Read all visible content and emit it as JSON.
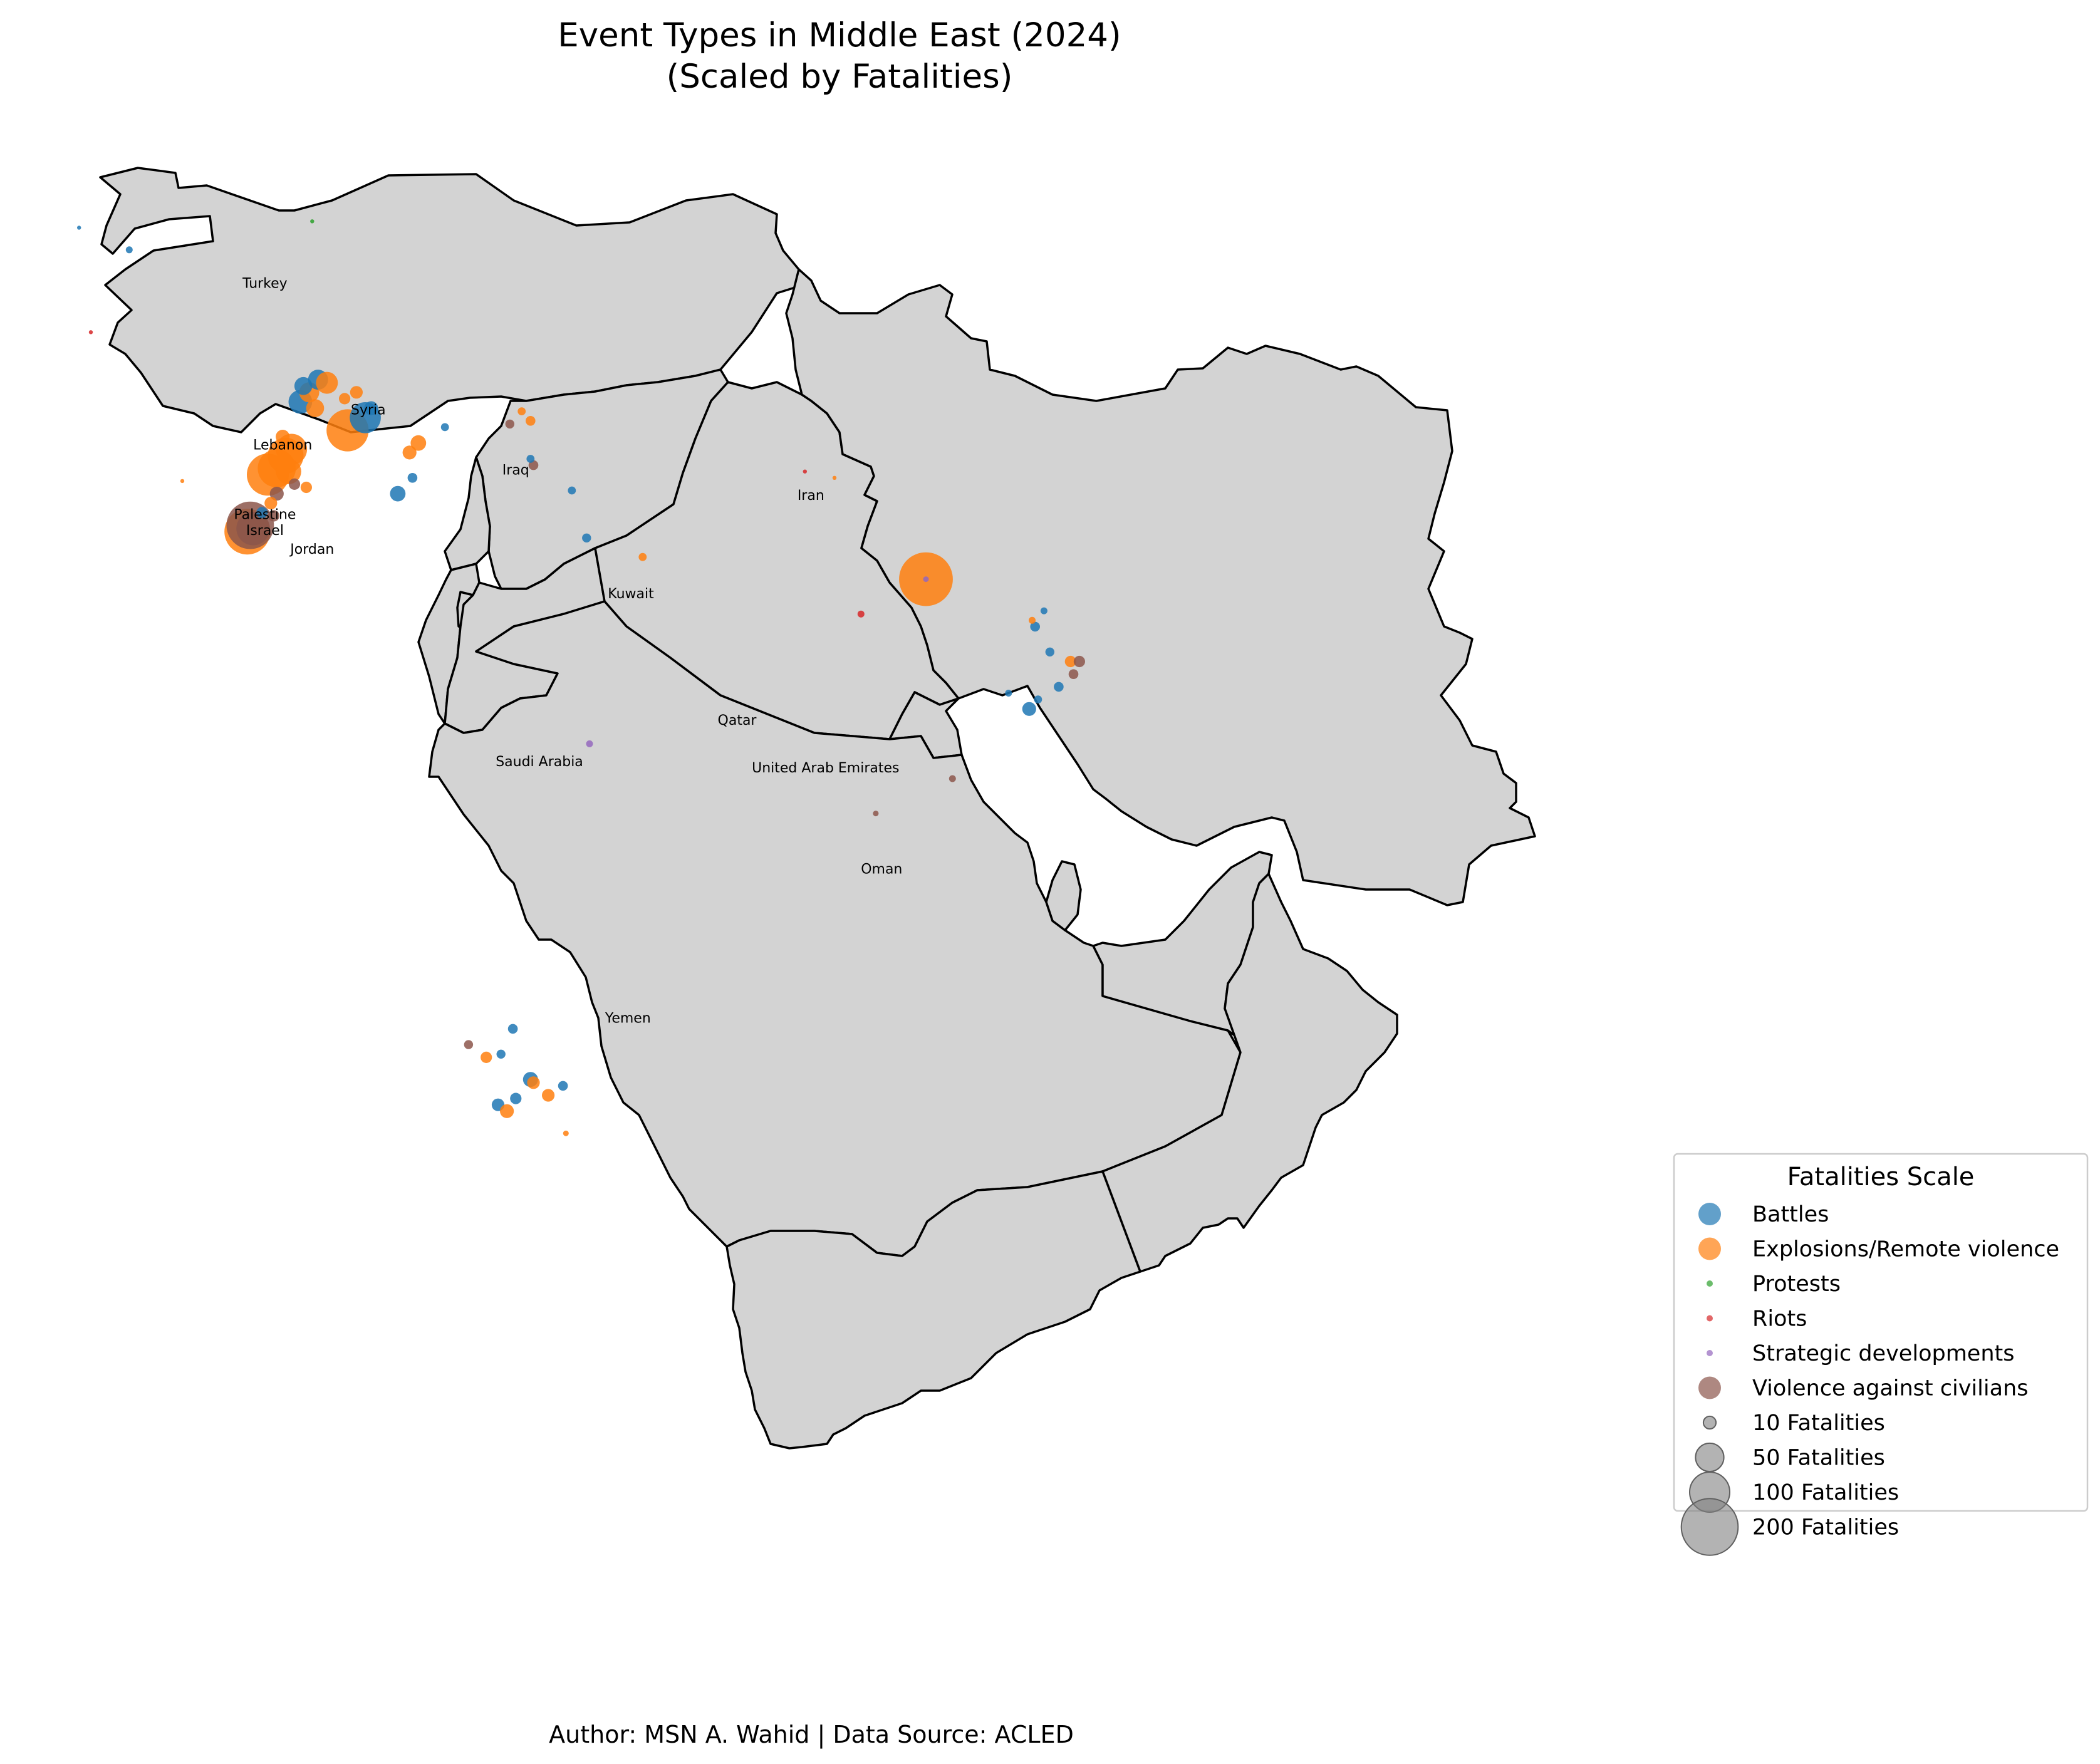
{
  "title": [
    "Event Types in Middle East (2024)",
    "(Scaled by Fatalities)"
  ],
  "footer": "Author: MSN A. Wahid | Data Source: ACLED",
  "countries": [
    {
      "name": "Turkey",
      "lon": 35.2,
      "lat": 39.1
    },
    {
      "name": "Syria",
      "lon": 38.7,
      "lat": 35.1
    },
    {
      "name": "Lebanon",
      "lon": 35.8,
      "lat": 34.0
    },
    {
      "name": "Palestine",
      "lon": 35.2,
      "lat": 31.8
    },
    {
      "name": "Israel",
      "lon": 35.2,
      "lat": 31.3
    },
    {
      "name": "Jordan",
      "lon": 36.8,
      "lat": 30.7
    },
    {
      "name": "Iraq",
      "lon": 43.7,
      "lat": 33.2
    },
    {
      "name": "Iran",
      "lon": 53.7,
      "lat": 32.4
    },
    {
      "name": "Kuwait",
      "lon": 47.6,
      "lat": 29.3
    },
    {
      "name": "Qatar",
      "lon": 51.2,
      "lat": 25.3
    },
    {
      "name": "Saudi Arabia",
      "lon": 44.5,
      "lat": 24.0
    },
    {
      "name": "United Arab Emirates",
      "lon": 54.2,
      "lat": 23.8
    },
    {
      "name": "Oman",
      "lon": 56.1,
      "lat": 20.6
    },
    {
      "name": "Yemen",
      "lon": 47.5,
      "lat": 15.9
    }
  ],
  "legend": {
    "title": "Fatalities Scale",
    "event_types": [
      {
        "name": "Battles",
        "color": "#1f77b4"
      },
      {
        "name": "Explosions/Remote violence",
        "color": "#ff7f0e"
      },
      {
        "name": "Protests",
        "color": "#2ca02c"
      },
      {
        "name": "Riots",
        "color": "#d62728"
      },
      {
        "name": "Strategic developments",
        "color": "#9467bd"
      },
      {
        "name": "Violence against civilians",
        "color": "#8c564b"
      }
    ],
    "sizes": [
      {
        "label": "10 Fatalities",
        "fatalities": 10
      },
      {
        "label": "50 Fatalities",
        "fatalities": 50
      },
      {
        "label": "100 Fatalities",
        "fatalities": 100
      },
      {
        "label": "200 Fatalities",
        "fatalities": 200
      }
    ]
  },
  "events": [
    {
      "type": "Explosions/Remote violence",
      "lon": 34.6,
      "lat": 31.4,
      "fatalities": 130
    },
    {
      "type": "Violence against civilians",
      "lon": 34.7,
      "lat": 31.6,
      "fatalities": 140
    },
    {
      "type": "Violence against civilians",
      "lon": 34.8,
      "lat": 31.5,
      "fatalities": 70
    },
    {
      "type": "Explosions/Remote violence",
      "lon": 35.3,
      "lat": 33.2,
      "fatalities": 110
    },
    {
      "type": "Explosions/Remote violence",
      "lon": 35.6,
      "lat": 33.4,
      "fatalities": 90
    },
    {
      "type": "Explosions/Remote violence",
      "lon": 35.9,
      "lat": 33.8,
      "fatalities": 80
    },
    {
      "type": "Explosions/Remote violence",
      "lon": 36.1,
      "lat": 34.0,
      "fatalities": 60
    },
    {
      "type": "Explosions/Remote violence",
      "lon": 36.0,
      "lat": 33.3,
      "fatalities": 40
    },
    {
      "type": "Explosions/Remote violence",
      "lon": 38.0,
      "lat": 34.6,
      "fatalities": 110
    },
    {
      "type": "Battles",
      "lon": 38.6,
      "lat": 35.0,
      "fatalities": 60
    },
    {
      "type": "Battles",
      "lon": 36.4,
      "lat": 35.5,
      "fatalities": 35
    },
    {
      "type": "Explosions/Remote violence",
      "lon": 36.7,
      "lat": 35.8,
      "fatalities": 25
    },
    {
      "type": "Battles",
      "lon": 37.0,
      "lat": 36.2,
      "fatalities": 25
    },
    {
      "type": "Explosions/Remote violence",
      "lon": 37.3,
      "lat": 36.1,
      "fatalities": 30
    },
    {
      "type": "Battles",
      "lon": 36.5,
      "lat": 36.0,
      "fatalities": 20
    },
    {
      "type": "Explosions/Remote violence",
      "lon": 36.9,
      "lat": 35.3,
      "fatalities": 20
    },
    {
      "type": "Explosions/Remote violence",
      "lon": 40.4,
      "lat": 34.2,
      "fatalities": 15
    },
    {
      "type": "Battles",
      "lon": 39.7,
      "lat": 32.6,
      "fatalities": 15
    },
    {
      "type": "Battles",
      "lon": 40.2,
      "lat": 33.1,
      "fatalities": 6
    },
    {
      "type": "Explosions/Remote violence",
      "lon": 40.1,
      "lat": 33.9,
      "fatalities": 12
    },
    {
      "type": "Explosions/Remote violence",
      "lon": 38.3,
      "lat": 35.8,
      "fatalities": 10
    },
    {
      "type": "Battles",
      "lon": 38.8,
      "lat": 35.3,
      "fatalities": 12
    },
    {
      "type": "Violence against civilians",
      "lon": 35.6,
      "lat": 32.6,
      "fatalities": 12
    },
    {
      "type": "Explosions/Remote violence",
      "lon": 35.4,
      "lat": 32.3,
      "fatalities": 10
    },
    {
      "type": "Battles",
      "lon": 35.1,
      "lat": 32.0,
      "fatalities": 8
    },
    {
      "type": "Violence against civilians",
      "lon": 35.5,
      "lat": 31.9,
      "fatalities": 8
    },
    {
      "type": "Violence against civilians",
      "lon": 36.2,
      "lat": 32.9,
      "fatalities": 8
    },
    {
      "type": "Explosions/Remote violence",
      "lon": 36.6,
      "lat": 32.8,
      "fatalities": 8
    },
    {
      "type": "Explosions/Remote violence",
      "lon": 35.8,
      "lat": 34.4,
      "fatalities": 12
    },
    {
      "type": "Explosions/Remote violence",
      "lon": 37.9,
      "lat": 35.6,
      "fatalities": 8
    },
    {
      "type": "Battles",
      "lon": 41.3,
      "lat": 34.7,
      "fatalities": 4
    },
    {
      "type": "Explosions/Remote violence",
      "lon": 44.2,
      "lat": 34.9,
      "fatalities": 6
    },
    {
      "type": "Violence against civilians",
      "lon": 44.3,
      "lat": 33.5,
      "fatalities": 6
    },
    {
      "type": "Battles",
      "lon": 44.2,
      "lat": 33.7,
      "fatalities": 4
    },
    {
      "type": "Violence against civilians",
      "lon": 43.5,
      "lat": 34.8,
      "fatalities": 5
    },
    {
      "type": "Explosions/Remote violence",
      "lon": 43.9,
      "lat": 35.2,
      "fatalities": 4
    },
    {
      "type": "Battles",
      "lon": 45.6,
      "lat": 32.7,
      "fatalities": 4
    },
    {
      "type": "Battles",
      "lon": 46.1,
      "lat": 31.2,
      "fatalities": 5
    },
    {
      "type": "Explosions/Remote violence",
      "lon": 48.0,
      "lat": 30.6,
      "fatalities": 4
    },
    {
      "type": "Explosions/Remote violence",
      "lon": 57.6,
      "lat": 29.9,
      "fatalities": 180
    },
    {
      "type": "Strategic developments",
      "lon": 57.6,
      "lat": 29.9,
      "fatalities": 2
    },
    {
      "type": "Riots",
      "lon": 55.4,
      "lat": 28.8,
      "fatalities": 3
    },
    {
      "type": "Battles",
      "lon": 61.3,
      "lat": 28.4,
      "fatalities": 6
    },
    {
      "type": "Battles",
      "lon": 61.8,
      "lat": 27.6,
      "fatalities": 5
    },
    {
      "type": "Explosions/Remote violence",
      "lon": 62.5,
      "lat": 27.3,
      "fatalities": 8
    },
    {
      "type": "Violence against civilians",
      "lon": 62.8,
      "lat": 27.3,
      "fatalities": 8
    },
    {
      "type": "Violence against civilians",
      "lon": 62.6,
      "lat": 26.9,
      "fatalities": 6
    },
    {
      "type": "Battles",
      "lon": 62.1,
      "lat": 26.5,
      "fatalities": 6
    },
    {
      "type": "Battles",
      "lon": 61.1,
      "lat": 25.8,
      "fatalities": 12
    },
    {
      "type": "Battles",
      "lon": 61.4,
      "lat": 26.1,
      "fatalities": 4
    },
    {
      "type": "Battles",
      "lon": 60.4,
      "lat": 26.3,
      "fatalities": 3
    },
    {
      "type": "Explosions/Remote violence",
      "lon": 61.2,
      "lat": 28.6,
      "fatalities": 3
    },
    {
      "type": "Battles",
      "lon": 61.6,
      "lat": 28.9,
      "fatalities": 3
    },
    {
      "type": "Violence against civilians",
      "lon": 58.5,
      "lat": 23.6,
      "fatalities": 3
    },
    {
      "type": "Strategic developments",
      "lon": 46.2,
      "lat": 24.7,
      "fatalities": 3
    },
    {
      "type": "Riots",
      "lon": 53.5,
      "lat": 33.3,
      "fatalities": 1
    },
    {
      "type": "Explosions/Remote violence",
      "lon": 54.5,
      "lat": 33.1,
      "fatalities": 1
    },
    {
      "type": "Battles",
      "lon": 30.6,
      "lat": 40.3,
      "fatalities": 3
    },
    {
      "type": "Battles",
      "lon": 28.9,
      "lat": 41.0,
      "fatalities": 1
    },
    {
      "type": "Riots",
      "lon": 29.3,
      "lat": 37.7,
      "fatalities": 1
    },
    {
      "type": "Protests",
      "lon": 36.8,
      "lat": 41.2,
      "fatalities": 1
    },
    {
      "type": "Battles",
      "lon": 43.6,
      "lat": 15.7,
      "fatalities": 6
    },
    {
      "type": "Explosions/Remote violence",
      "lon": 42.7,
      "lat": 14.8,
      "fatalities": 8
    },
    {
      "type": "Battles",
      "lon": 43.1,
      "lat": 13.3,
      "fatalities": 10
    },
    {
      "type": "Explosions/Remote violence",
      "lon": 43.4,
      "lat": 13.1,
      "fatalities": 12
    },
    {
      "type": "Battles",
      "lon": 43.7,
      "lat": 13.5,
      "fatalities": 8
    },
    {
      "type": "Battles",
      "lon": 44.2,
      "lat": 14.1,
      "fatalities": 14
    },
    {
      "type": "Explosions/Remote violence",
      "lon": 44.3,
      "lat": 14.0,
      "fatalities": 10
    },
    {
      "type": "Explosions/Remote violence",
      "lon": 44.8,
      "lat": 13.6,
      "fatalities": 10
    },
    {
      "type": "Battles",
      "lon": 45.3,
      "lat": 13.9,
      "fatalities": 6
    },
    {
      "type": "Battles",
      "lon": 43.2,
      "lat": 14.9,
      "fatalities": 5
    },
    {
      "type": "Violence against civilians",
      "lon": 42.1,
      "lat": 15.2,
      "fatalities": 5
    },
    {
      "type": "Explosions/Remote violence",
      "lon": 45.4,
      "lat": 12.4,
      "fatalities": 2
    },
    {
      "type": "Violence against civilians",
      "lon": 55.9,
      "lat": 22.5,
      "fatalities": 2
    },
    {
      "type": "Explosions/Remote violence",
      "lon": 32.4,
      "lat": 33.0,
      "fatalities": 1
    }
  ]
}
